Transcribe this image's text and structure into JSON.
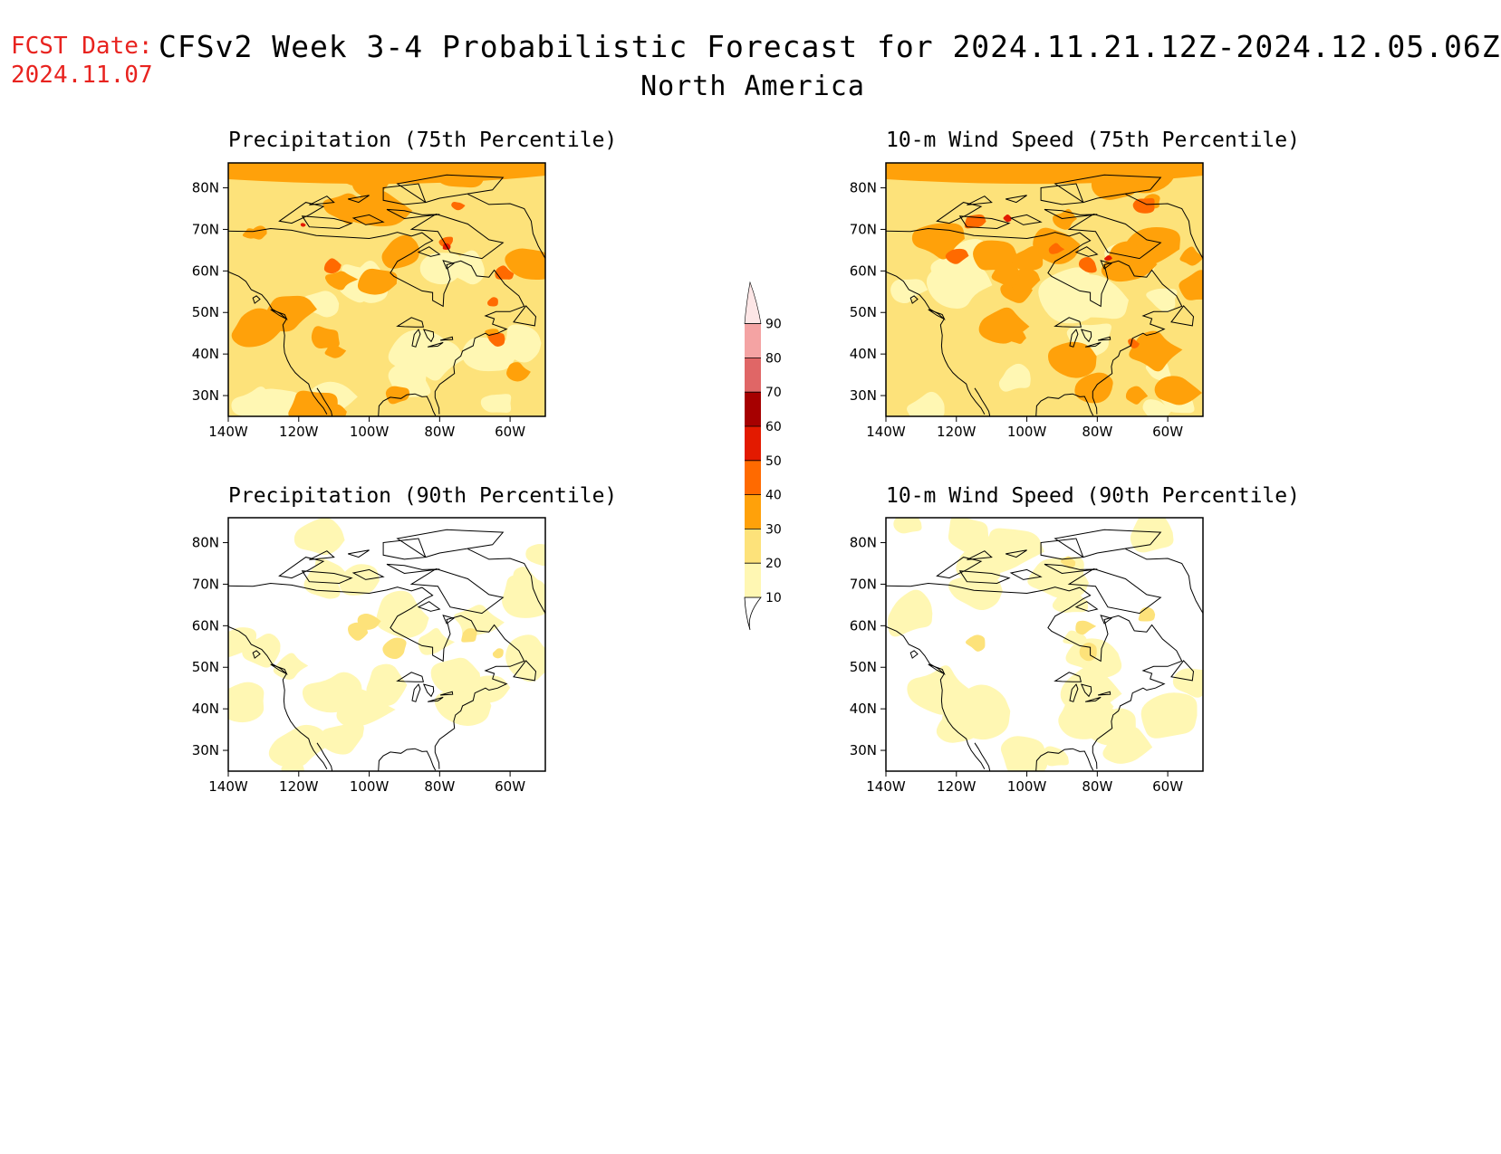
{
  "header": {
    "fcst_label": "FCST Date:",
    "fcst_date": "2024.11.07",
    "title": "CFSv2 Week 3-4 Probabilistic Forecast for 2024.11.21.12Z-2024.12.05.06Z",
    "subtitle": "North America"
  },
  "panels": [
    {
      "title": "Precipitation (75th Percentile)",
      "level": "high"
    },
    {
      "title": "10-m Wind Speed (75th Percentile)",
      "level": "high"
    },
    {
      "title": "Precipitation (90th Percentile)",
      "level": "low"
    },
    {
      "title": "10-m Wind Speed (90th Percentile)",
      "level": "low"
    }
  ],
  "axes": {
    "lat_labels": [
      "80N",
      "70N",
      "60N",
      "50N",
      "40N",
      "30N"
    ],
    "lat_values": [
      80,
      70,
      60,
      50,
      40,
      30
    ],
    "lat_range": [
      25,
      86
    ],
    "lon_labels": [
      "140W",
      "120W",
      "100W",
      "80W",
      "60W"
    ],
    "lon_values": [
      -140,
      -120,
      -100,
      -80,
      -60
    ],
    "lon_range": [
      -140,
      -50
    ]
  },
  "colorbar": {
    "levels": [
      "10",
      "20",
      "30",
      "40",
      "50",
      "60",
      "70",
      "80",
      "90"
    ],
    "colors": [
      "#fff7b3",
      "#fde27a",
      "#ffa10a",
      "#ff6a00",
      "#e31a00",
      "#a60000",
      "#e06666",
      "#f4a3a3",
      "#fde6e6"
    ]
  }
}
